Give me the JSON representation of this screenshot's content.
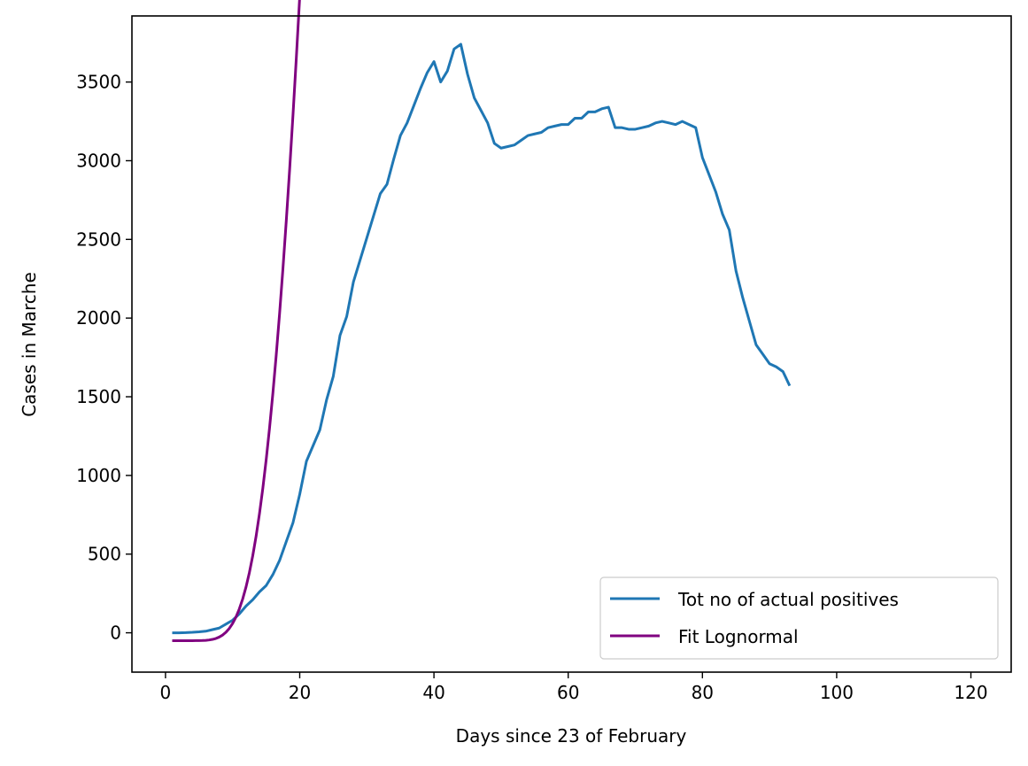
{
  "chart_data": {
    "type": "line",
    "xlabel": "Days since 23 of February",
    "ylabel": "Cases in Marche",
    "xlim": [
      -5,
      126
    ],
    "ylim": [
      -250,
      3920
    ],
    "xticks": [
      0,
      20,
      40,
      60,
      80,
      100,
      120
    ],
    "yticks": [
      0,
      500,
      1000,
      1500,
      2000,
      2500,
      3000,
      3500
    ],
    "grid": false,
    "legend_position": "lower right",
    "series": [
      {
        "name": "Tot no of actual positives",
        "color": "#1f77b4",
        "x": [
          1,
          2,
          3,
          4,
          5,
          6,
          7,
          8,
          9,
          10,
          11,
          12,
          13,
          14,
          15,
          16,
          17,
          18,
          19,
          20,
          21,
          22,
          23,
          24,
          25,
          26,
          27,
          28,
          29,
          30,
          31,
          32,
          33,
          34,
          35,
          36,
          37,
          38,
          39,
          40,
          41,
          42,
          43,
          44,
          45,
          46,
          47,
          48,
          49,
          50,
          51,
          52,
          53,
          54,
          55,
          56,
          57,
          58,
          59,
          60,
          61,
          62,
          63,
          64,
          65,
          66,
          67,
          68,
          69,
          70,
          71,
          72,
          73,
          74,
          75,
          76,
          77,
          78,
          79,
          80,
          81,
          82,
          83,
          84,
          85,
          86,
          87,
          88,
          89,
          90,
          91,
          92,
          93
        ],
        "y": [
          0,
          0,
          1,
          3,
          6,
          10,
          20,
          30,
          55,
          80,
          120,
          170,
          210,
          260,
          300,
          370,
          460,
          580,
          700,
          880,
          1090,
          1190,
          1290,
          1480,
          1630,
          1890,
          2010,
          2230,
          2370,
          2510,
          2650,
          2790,
          2850,
          3010,
          3160,
          3240,
          3350,
          3460,
          3560,
          3630,
          3500,
          3570,
          3710,
          3740,
          3550,
          3400,
          3320,
          3240,
          3110,
          3080,
          3090,
          3100,
          3130,
          3160,
          3170,
          3180,
          3210,
          3220,
          3230,
          3230,
          3270,
          3270,
          3310,
          3310,
          3330,
          3340,
          3210,
          3210,
          3200,
          3200,
          3210,
          3220,
          3240,
          3250,
          3240,
          3230,
          3250,
          3230,
          3210,
          3020,
          2910,
          2800,
          2660,
          2560,
          2300,
          2130,
          1980,
          1830,
          1770,
          1710,
          1690,
          1660,
          1570
        ]
      },
      {
        "name": "Fit Lognormal",
        "color": "#800080",
        "model": "lognormal",
        "params": {
          "A": 1920000,
          "mu": 4.206,
          "sigma": 0.5,
          "offset": -50
        },
        "x_range": [
          1,
          120
        ]
      }
    ]
  }
}
